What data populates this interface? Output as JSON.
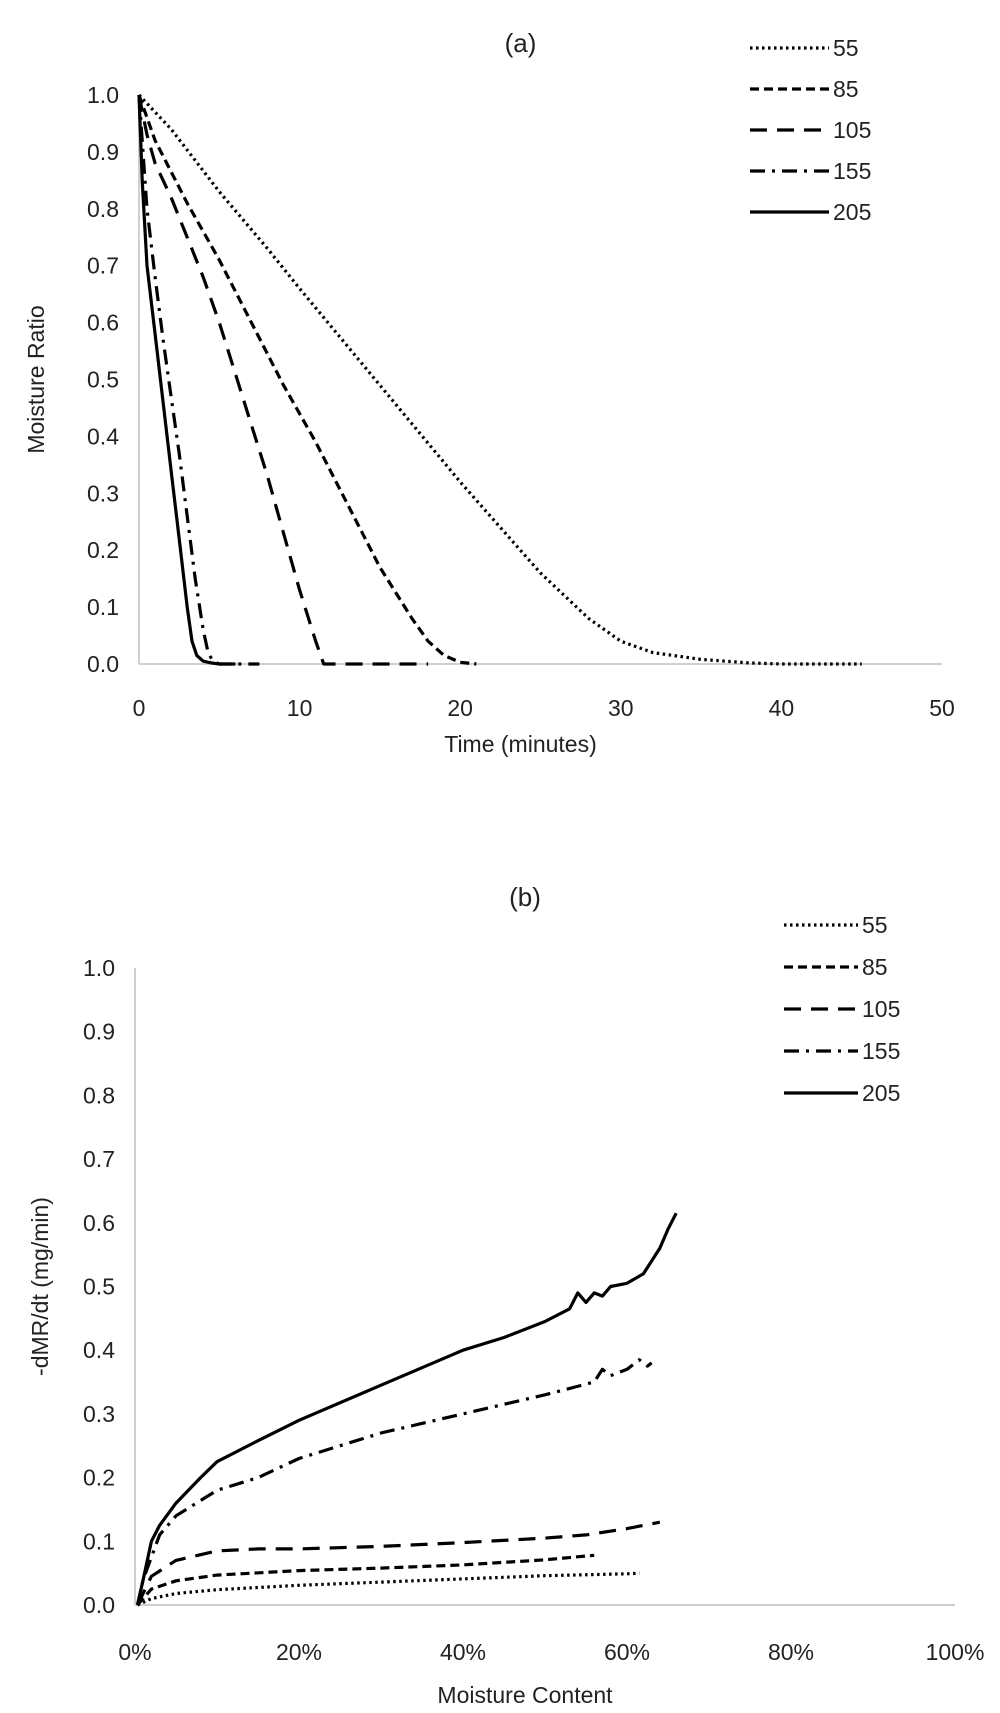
{
  "chart_data": [
    {
      "type": "line",
      "title": "(a)",
      "xlabel": "Time (minutes)",
      "ylabel": "Moisture Ratio",
      "xlim": [
        0,
        50
      ],
      "ylim": [
        0,
        1.0
      ],
      "x_ticks": [
        "0",
        "10",
        "20",
        "30",
        "40",
        "50"
      ],
      "y_ticks": [
        "0.0",
        "0.1",
        "0.2",
        "0.3",
        "0.4",
        "0.5",
        "0.6",
        "0.7",
        "0.8",
        "0.9",
        "1.0"
      ],
      "grid": false,
      "legend_position": "top-right",
      "series": [
        {
          "name": "55",
          "dash": "dotted",
          "x": [
            0,
            2,
            5,
            8,
            10,
            15,
            20,
            25,
            28,
            30,
            32,
            35,
            38,
            40,
            45
          ],
          "y": [
            1.0,
            0.94,
            0.83,
            0.73,
            0.66,
            0.49,
            0.32,
            0.16,
            0.08,
            0.04,
            0.02,
            0.008,
            0.002,
            0.0,
            0.0
          ]
        },
        {
          "name": "85",
          "dash": "short-dash",
          "x": [
            0,
            1,
            3,
            5,
            7,
            9,
            11,
            13,
            15,
            17,
            18,
            19,
            20,
            21
          ],
          "y": [
            1.0,
            0.92,
            0.81,
            0.71,
            0.6,
            0.49,
            0.39,
            0.28,
            0.17,
            0.08,
            0.04,
            0.015,
            0.003,
            0.0
          ]
        },
        {
          "name": "105",
          "dash": "long-dash",
          "x": [
            0,
            0.5,
            1,
            2,
            3,
            4,
            5,
            6,
            7,
            8,
            9,
            10,
            11,
            11.5,
            15,
            18
          ],
          "y": [
            1.0,
            0.93,
            0.88,
            0.82,
            0.75,
            0.68,
            0.6,
            0.51,
            0.42,
            0.33,
            0.23,
            0.13,
            0.04,
            0.0,
            0.0,
            0.0
          ]
        },
        {
          "name": "155",
          "dash": "dash-dot",
          "x": [
            0,
            0.25,
            0.5,
            1,
            1.5,
            2,
            2.5,
            3,
            3.5,
            4,
            4.3,
            4.6,
            5,
            6,
            7.5
          ],
          "y": [
            1.0,
            0.9,
            0.8,
            0.68,
            0.57,
            0.47,
            0.37,
            0.26,
            0.15,
            0.06,
            0.02,
            0.005,
            0.0,
            0.0,
            0.0
          ]
        },
        {
          "name": "205",
          "dash": "solid",
          "x": [
            0,
            0.2,
            0.5,
            1,
            1.5,
            2,
            2.5,
            3,
            3.3,
            3.6,
            4,
            4.5,
            5,
            6
          ],
          "y": [
            1.0,
            0.85,
            0.7,
            0.58,
            0.46,
            0.34,
            0.22,
            0.1,
            0.04,
            0.015,
            0.005,
            0.002,
            0.0,
            0.0
          ]
        }
      ]
    },
    {
      "type": "line",
      "title": "(b)",
      "xlabel": "Moisture Content",
      "ylabel": "-dMR/dt (mg/min)",
      "xlim": [
        0,
        100
      ],
      "ylim": [
        0,
        1.0
      ],
      "x_ticks": [
        "0%",
        "20%",
        "40%",
        "60%",
        "80%",
        "100%"
      ],
      "y_ticks": [
        "0.0",
        "0.1",
        "0.2",
        "0.3",
        "0.4",
        "0.5",
        "0.6",
        "0.7",
        "0.8",
        "0.9",
        "1.0"
      ],
      "grid": false,
      "legend_position": "top-right",
      "series": [
        {
          "name": "55",
          "dash": "dotted",
          "x": [
            0.3,
            2,
            5,
            10,
            20,
            30,
            40,
            50,
            60,
            61.5
          ],
          "y": [
            0.0,
            0.01,
            0.018,
            0.024,
            0.031,
            0.036,
            0.041,
            0.046,
            0.049,
            0.05
          ]
        },
        {
          "name": "85",
          "dash": "short-dash",
          "x": [
            0.3,
            2,
            5,
            10,
            20,
            30,
            40,
            50,
            56
          ],
          "y": [
            0.0,
            0.025,
            0.038,
            0.047,
            0.054,
            0.058,
            0.063,
            0.071,
            0.078
          ]
        },
        {
          "name": "105",
          "dash": "long-dash",
          "x": [
            0.3,
            2,
            5,
            10,
            15,
            20,
            30,
            40,
            50,
            55,
            60,
            64
          ],
          "y": [
            0.0,
            0.045,
            0.07,
            0.085,
            0.088,
            0.088,
            0.092,
            0.098,
            0.105,
            0.11,
            0.12,
            0.13
          ]
        },
        {
          "name": "155",
          "dash": "dash-dot",
          "x": [
            0.3,
            1,
            3,
            5,
            10,
            15,
            20,
            30,
            40,
            50,
            56,
            57,
            58,
            60,
            61.5,
            62.5,
            63
          ],
          "y": [
            0.0,
            0.04,
            0.11,
            0.14,
            0.18,
            0.2,
            0.23,
            0.27,
            0.3,
            0.33,
            0.35,
            0.37,
            0.36,
            0.37,
            0.385,
            0.375,
            0.38
          ]
        },
        {
          "name": "205",
          "dash": "solid",
          "x": [
            0.3,
            1,
            2,
            3,
            5,
            8,
            10,
            15,
            20,
            30,
            40,
            45,
            50,
            53,
            54,
            55,
            56,
            57,
            58,
            60,
            62,
            64,
            65,
            66
          ],
          "y": [
            0.0,
            0.04,
            0.1,
            0.125,
            0.16,
            0.2,
            0.225,
            0.258,
            0.29,
            0.345,
            0.4,
            0.42,
            0.445,
            0.465,
            0.49,
            0.475,
            0.49,
            0.485,
            0.5,
            0.505,
            0.52,
            0.56,
            0.59,
            0.615
          ]
        }
      ]
    }
  ]
}
